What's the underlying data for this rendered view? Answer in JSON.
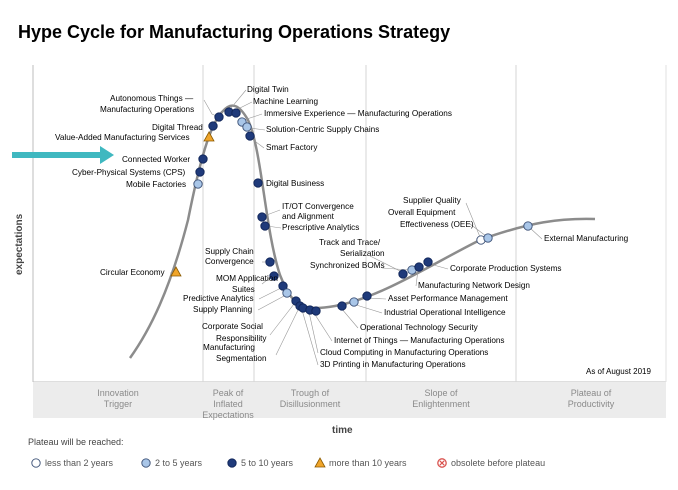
{
  "title": "Hype Cycle for Manufacturing Operations Strategy",
  "y_axis_label": "expectations",
  "x_axis_label": "time",
  "as_of": "As of August 2019",
  "phases": [
    {
      "name": "Innovation",
      "sub": "Trigger"
    },
    {
      "name": "Peak of",
      "sub": "Inflated",
      "sub2": "Expectations"
    },
    {
      "name": "Trough of",
      "sub": "Disillusionment"
    },
    {
      "name": "Slope of",
      "sub": "Enlightenment"
    },
    {
      "name": "Plateau of",
      "sub": "Productivity"
    }
  ],
  "legend": {
    "title": "Plateau will be reached:",
    "items": [
      {
        "label": "less than 2 years",
        "marker": "open-circle"
      },
      {
        "label": "2 to 5 years",
        "marker": "light-blue-circle"
      },
      {
        "label": "5 to 10 years",
        "marker": "navy-circle"
      },
      {
        "label": "more than 10 years",
        "marker": "orange-triangle"
      },
      {
        "label": "obsolete before plateau",
        "marker": "red-x-circle"
      }
    ]
  },
  "colors": {
    "curve": "#8c8c8c",
    "navy": "#1f3a7a",
    "light_blue": "#a9c6e8",
    "open": "#ffffff",
    "triangle": "#f0a52a",
    "obsolete": "#d9534f",
    "arrow": "#3fb8c0",
    "band": "#ececec"
  },
  "technologies": [
    {
      "name": "Circular Economy",
      "marker": "orange-triangle"
    },
    {
      "name": "Mobile Factories",
      "marker": "light-blue-circle"
    },
    {
      "name": "Cyber-Physical Systems (CPS)",
      "marker": "navy-circle"
    },
    {
      "name": "Connected Worker",
      "marker": "navy-circle",
      "highlighted": true
    },
    {
      "name": "Value-Added Manufacturing Services",
      "marker": "orange-triangle"
    },
    {
      "name": "Digital Thread",
      "marker": "navy-circle"
    },
    {
      "name": "Autonomous Things — Manufacturing Operations",
      "marker": "navy-circle"
    },
    {
      "name": "Digital Twin",
      "marker": "navy-circle"
    },
    {
      "name": "Machine Learning",
      "marker": "navy-circle"
    },
    {
      "name": "Immersive Experience — Manufacturing Operations",
      "marker": "light-blue-circle"
    },
    {
      "name": "Solution-Centric Supply Chains",
      "marker": "light-blue-circle"
    },
    {
      "name": "Smart Factory",
      "marker": "navy-circle"
    },
    {
      "name": "Digital Business",
      "marker": "navy-circle"
    },
    {
      "name": "IT/OT Convergence and Alignment",
      "marker": "navy-circle"
    },
    {
      "name": "Prescriptive Analytics",
      "marker": "navy-circle"
    },
    {
      "name": "Supply Chain Convergence",
      "marker": "navy-circle"
    },
    {
      "name": "MOM Application Suites",
      "marker": "navy-circle"
    },
    {
      "name": "Predictive Analytics",
      "marker": "navy-circle"
    },
    {
      "name": "Supply Planning",
      "marker": "light-blue-circle"
    },
    {
      "name": "Corporate Social Responsibility",
      "marker": "navy-circle"
    },
    {
      "name": "Manufacturing Segmentation",
      "marker": "navy-circle"
    },
    {
      "name": "3D Printing in Manufacturing Operations",
      "marker": "navy-circle"
    },
    {
      "name": "Cloud Computing in Manufacturing Operations",
      "marker": "navy-circle"
    },
    {
      "name": "Internet of Things — Manufacturing Operations",
      "marker": "navy-circle"
    },
    {
      "name": "Operational Technology Security",
      "marker": "navy-circle"
    },
    {
      "name": "Industrial Operational Intelligence",
      "marker": "light-blue-circle"
    },
    {
      "name": "Asset Performance Management",
      "marker": "navy-circle"
    },
    {
      "name": "Track and Trace/ Serialization",
      "marker": "navy-circle"
    },
    {
      "name": "Synchronized BOMs",
      "marker": "light-blue-circle"
    },
    {
      "name": "Manufacturing Network Design",
      "marker": "navy-circle"
    },
    {
      "name": "Corporate Production Systems",
      "marker": "navy-circle"
    },
    {
      "name": "Supplier Quality",
      "marker": "open-circle"
    },
    {
      "name": "Overall Equipment Effectiveness (OEE)",
      "marker": "light-blue-circle"
    },
    {
      "name": "External Manufacturing",
      "marker": "light-blue-circle"
    }
  ]
}
